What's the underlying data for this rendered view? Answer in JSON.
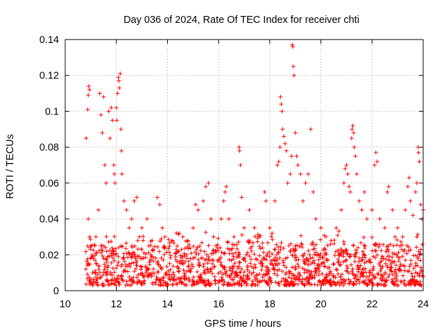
{
  "chart_data": {
    "type": "scatter",
    "title": "Day 036 of 2024, Rate Of TEC Index for receiver chti",
    "xlabel": "GPS time / hours",
    "ylabel": "ROTI / TECUs",
    "xlim": [
      10,
      24
    ],
    "ylim": [
      0,
      0.14
    ],
    "xticks": [
      {
        "value": 10,
        "label": "10"
      },
      {
        "value": 12,
        "label": "12"
      },
      {
        "value": 14,
        "label": "14"
      },
      {
        "value": 16,
        "label": "16"
      },
      {
        "value": 18,
        "label": "18"
      },
      {
        "value": 20,
        "label": "20"
      },
      {
        "value": 22,
        "label": "22"
      },
      {
        "value": 24,
        "label": "24"
      }
    ],
    "yticks": [
      {
        "value": 0,
        "label": "0"
      },
      {
        "value": 0.02,
        "label": "0.02"
      },
      {
        "value": 0.04,
        "label": "0.04"
      },
      {
        "value": 0.06,
        "label": "0.06"
      },
      {
        "value": 0.08,
        "label": "0.08"
      },
      {
        "value": 0.1,
        "label": "0.1"
      },
      {
        "value": 0.12,
        "label": "0.12"
      },
      {
        "value": 0.14,
        "label": "0.14"
      }
    ],
    "grid": true,
    "marker": "plus",
    "series": [
      {
        "name": "ROTI",
        "color": "#ff0000",
        "points": [
          [
            10.82,
            0.085
          ],
          [
            10.88,
            0.101
          ],
          [
            10.9,
            0.109
          ],
          [
            10.92,
            0.114
          ],
          [
            10.95,
            0.112
          ],
          [
            10.9,
            0.04
          ],
          [
            10.95,
            0.03
          ],
          [
            11.0,
            0.025
          ],
          [
            11.05,
            0.02
          ],
          [
            11.1,
            0.018
          ],
          [
            11.2,
            0.03
          ],
          [
            11.3,
            0.045
          ],
          [
            11.35,
            0.11
          ],
          [
            11.4,
            0.098
          ],
          [
            11.45,
            0.088
          ],
          [
            11.5,
            0.108
          ],
          [
            11.55,
            0.07
          ],
          [
            11.6,
            0.06
          ],
          [
            11.7,
            0.1
          ],
          [
            11.75,
            0.085
          ],
          [
            11.8,
            0.102
          ],
          [
            11.85,
            0.095
          ],
          [
            11.9,
            0.07
          ],
          [
            11.92,
            0.065
          ],
          [
            11.95,
            0.06
          ],
          [
            12.0,
            0.102
          ],
          [
            12.02,
            0.095
          ],
          [
            12.05,
            0.11
          ],
          [
            12.08,
            0.119
          ],
          [
            12.1,
            0.117
          ],
          [
            12.12,
            0.113
          ],
          [
            12.15,
            0.121
          ],
          [
            12.18,
            0.09
          ],
          [
            12.2,
            0.078
          ],
          [
            12.22,
            0.065
          ],
          [
            12.3,
            0.05
          ],
          [
            12.4,
            0.045
          ],
          [
            12.5,
            0.035
          ],
          [
            12.6,
            0.04
          ],
          [
            12.7,
            0.05
          ],
          [
            12.8,
            0.052
          ],
          [
            12.9,
            0.03
          ],
          [
            13.0,
            0.035
          ],
          [
            13.2,
            0.04
          ],
          [
            13.4,
            0.028
          ],
          [
            13.6,
            0.052
          ],
          [
            13.7,
            0.048
          ],
          [
            13.8,
            0.035
          ],
          [
            13.9,
            0.03
          ],
          [
            14.2,
            0.028
          ],
          [
            14.4,
            0.022
          ],
          [
            14.6,
            0.03
          ],
          [
            14.8,
            0.028
          ],
          [
            15.0,
            0.035
          ],
          [
            15.1,
            0.048
          ],
          [
            15.2,
            0.045
          ],
          [
            15.4,
            0.05
          ],
          [
            15.5,
            0.058
          ],
          [
            15.6,
            0.06
          ],
          [
            15.7,
            0.04
          ],
          [
            15.8,
            0.03
          ],
          [
            15.9,
            0.025
          ],
          [
            16.1,
            0.04
          ],
          [
            16.2,
            0.05
          ],
          [
            16.25,
            0.055
          ],
          [
            16.3,
            0.058
          ],
          [
            16.4,
            0.04
          ],
          [
            16.6,
            0.03
          ],
          [
            16.8,
            0.08
          ],
          [
            16.82,
            0.078
          ],
          [
            16.85,
            0.07
          ],
          [
            16.9,
            0.052
          ],
          [
            17.0,
            0.035
          ],
          [
            17.2,
            0.045
          ],
          [
            17.4,
            0.035
          ],
          [
            17.6,
            0.03
          ],
          [
            17.8,
            0.055
          ],
          [
            17.85,
            0.05
          ],
          [
            18.0,
            0.035
          ],
          [
            18.2,
            0.05
          ],
          [
            18.3,
            0.07
          ],
          [
            18.35,
            0.072
          ],
          [
            18.4,
            0.08
          ],
          [
            18.42,
            0.108
          ],
          [
            18.45,
            0.104
          ],
          [
            18.48,
            0.1
          ],
          [
            18.5,
            0.09
          ],
          [
            18.55,
            0.086
          ],
          [
            18.6,
            0.082
          ],
          [
            18.65,
            0.078
          ],
          [
            18.7,
            0.06
          ],
          [
            18.8,
            0.065
          ],
          [
            18.85,
            0.075
          ],
          [
            18.88,
            0.137
          ],
          [
            18.9,
            0.136
          ],
          [
            18.92,
            0.125
          ],
          [
            18.95,
            0.12
          ],
          [
            19.0,
            0.088
          ],
          [
            19.05,
            0.075
          ],
          [
            19.1,
            0.07
          ],
          [
            19.2,
            0.065
          ],
          [
            19.3,
            0.05
          ],
          [
            19.4,
            0.06
          ],
          [
            19.5,
            0.065
          ],
          [
            19.6,
            0.09
          ],
          [
            19.7,
            0.055
          ],
          [
            19.8,
            0.04
          ],
          [
            20.0,
            0.035
          ],
          [
            20.2,
            0.03
          ],
          [
            20.4,
            0.028
          ],
          [
            20.6,
            0.035
          ],
          [
            20.8,
            0.045
          ],
          [
            20.9,
            0.06
          ],
          [
            20.95,
            0.068
          ],
          [
            21.0,
            0.07
          ],
          [
            21.05,
            0.065
          ],
          [
            21.1,
            0.058
          ],
          [
            21.15,
            0.055
          ],
          [
            21.2,
            0.085
          ],
          [
            21.22,
            0.09
          ],
          [
            21.25,
            0.092
          ],
          [
            21.28,
            0.088
          ],
          [
            21.3,
            0.08
          ],
          [
            21.35,
            0.075
          ],
          [
            21.4,
            0.065
          ],
          [
            21.5,
            0.05
          ],
          [
            21.6,
            0.045
          ],
          [
            21.7,
            0.055
          ],
          [
            21.8,
            0.04
          ],
          [
            22.0,
            0.045
          ],
          [
            22.1,
            0.07
          ],
          [
            22.15,
            0.077
          ],
          [
            22.2,
            0.072
          ],
          [
            22.3,
            0.04
          ],
          [
            22.5,
            0.035
          ],
          [
            22.6,
            0.055
          ],
          [
            22.65,
            0.058
          ],
          [
            22.8,
            0.045
          ],
          [
            22.9,
            0.03
          ],
          [
            23.0,
            0.035
          ],
          [
            23.2,
            0.03
          ],
          [
            23.3,
            0.045
          ],
          [
            23.4,
            0.058
          ],
          [
            23.45,
            0.063
          ],
          [
            23.5,
            0.05
          ],
          [
            23.6,
            0.042
          ],
          [
            23.7,
            0.055
          ],
          [
            23.75,
            0.06
          ],
          [
            23.8,
            0.08
          ],
          [
            23.82,
            0.077
          ],
          [
            23.85,
            0.072
          ],
          [
            23.9,
            0.048
          ],
          [
            23.95,
            0.04
          ],
          [
            24.0,
            0.045
          ]
        ],
        "baseline_band": {
          "x_range": [
            10.8,
            24.0
          ],
          "typical_range": [
            0.003,
            0.025
          ]
        }
      }
    ]
  }
}
